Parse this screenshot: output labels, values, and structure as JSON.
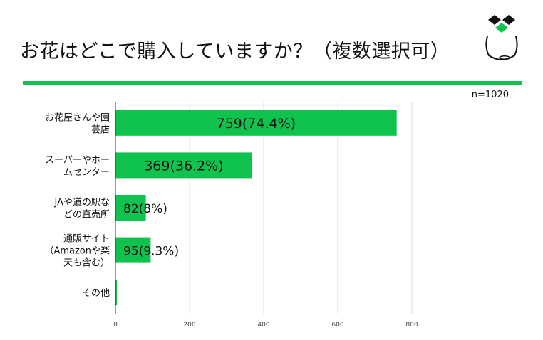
{
  "header": {
    "title": "お花はどこで購入していますか？（複数選択可）",
    "accent_color": "#10c24e",
    "logo_icon": "flowerpot-logo-icon"
  },
  "sample_size_label": "n=1020",
  "chart_data": {
    "type": "bar",
    "orientation": "horizontal",
    "categories": [
      [
        "お花屋さんや園",
        "芸店"
      ],
      [
        "スーパーやホー",
        "ムセンター"
      ],
      [
        "JAや道の駅な",
        "どの直売所"
      ],
      [
        "通販サイト",
        "（Amazonや楽",
        "天も含む）"
      ],
      [
        "その他"
      ]
    ],
    "values": [
      759,
      369,
      82,
      95,
      4
    ],
    "data_labels": [
      "759(74.4%)",
      "369(36.2%)",
      "82(8%)",
      "95(9.3%)",
      ""
    ],
    "xlim": [
      0,
      800
    ],
    "xticks": [
      0,
      200,
      400,
      600,
      800
    ],
    "grid": true,
    "bar_color": "#10c24e"
  }
}
